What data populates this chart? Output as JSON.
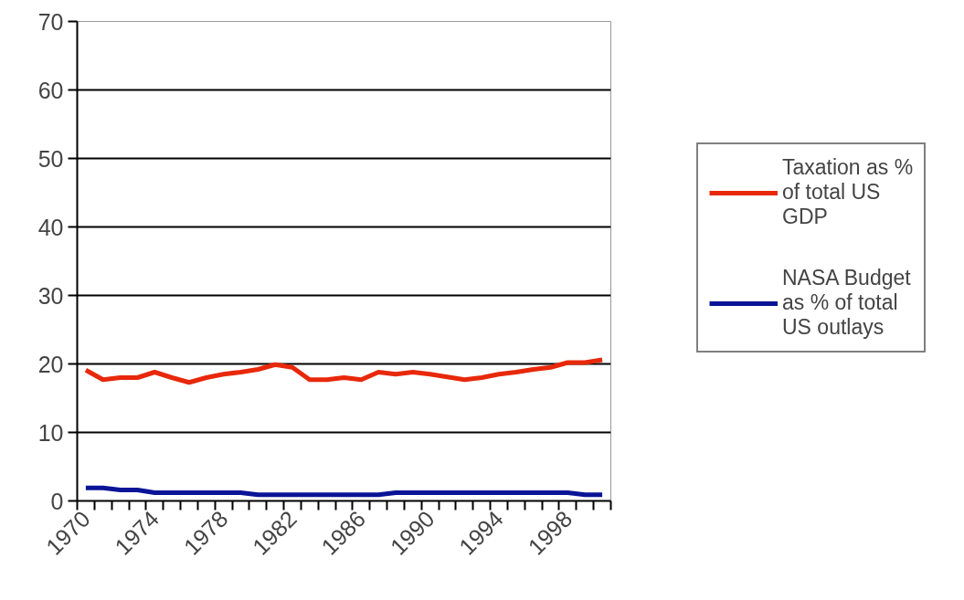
{
  "chart_data": {
    "type": "line",
    "categories": [
      "1970",
      null,
      null,
      null,
      "1974",
      null,
      null,
      null,
      "1978",
      null,
      null,
      null,
      "1982",
      null,
      null,
      null,
      "1986",
      null,
      null,
      null,
      "1990",
      null,
      null,
      null,
      "1994",
      null,
      null,
      null,
      "1998",
      null,
      null
    ],
    "series": [
      {
        "name": "Taxation as % of total US GDP",
        "color": "#e8280a",
        "values": [
          19.1,
          17.7,
          18.0,
          18.0,
          18.8,
          18.0,
          17.3,
          18.0,
          18.5,
          18.8,
          19.2,
          19.9,
          19.5,
          17.7,
          17.7,
          18.0,
          17.7,
          18.8,
          18.5,
          18.8,
          18.5,
          18.1,
          17.7,
          18.0,
          18.5,
          18.8,
          19.2,
          19.5,
          20.2,
          20.2,
          20.6
        ]
      },
      {
        "name": "NASA Budget as % of total US outlays",
        "color": "#0a1496",
        "values": [
          1.9,
          1.9,
          1.6,
          1.6,
          1.2,
          1.2,
          1.2,
          1.2,
          1.2,
          1.2,
          0.9,
          0.9,
          0.9,
          0.9,
          0.9,
          0.9,
          0.9,
          0.9,
          1.2,
          1.2,
          1.2,
          1.2,
          1.2,
          1.2,
          1.2,
          1.2,
          1.2,
          1.2,
          1.2,
          0.9,
          0.9
        ]
      }
    ],
    "ylim": [
      0,
      70
    ],
    "yticks": [
      0,
      10,
      20,
      30,
      40,
      50,
      60,
      70
    ],
    "grid": "y",
    "legend": "right",
    "marker": "none",
    "line_style": "solid"
  }
}
